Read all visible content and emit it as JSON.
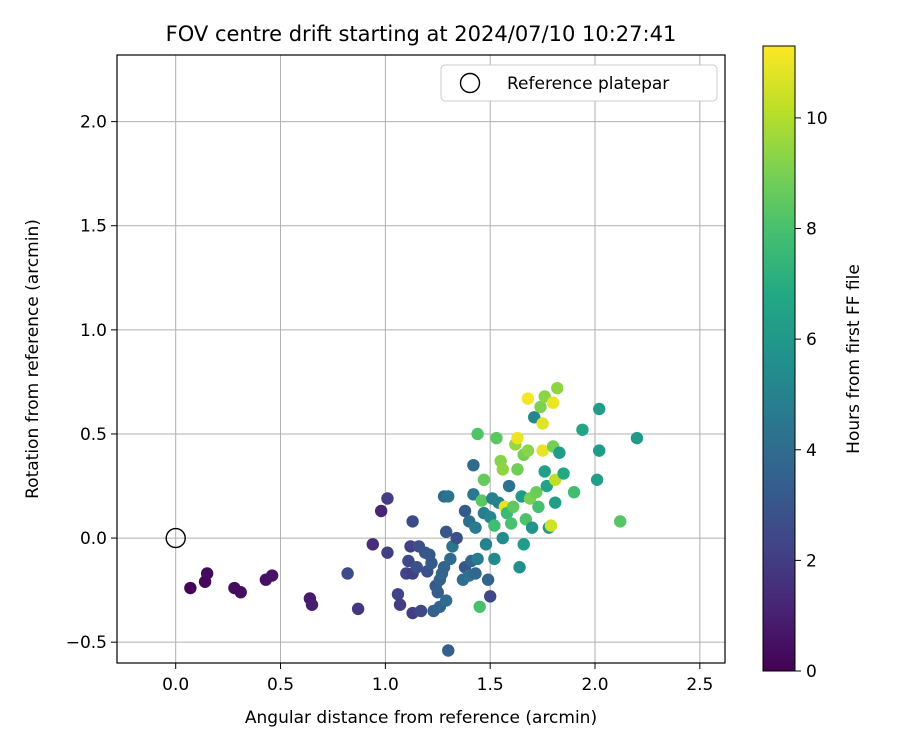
{
  "chart_data": {
    "type": "scatter",
    "title": "FOV centre drift starting at 2024/07/10 10:27:41",
    "xlabel": "Angular distance from reference (arcmin)",
    "ylabel": "Rotation from reference (arcmin)",
    "xlim": [
      -0.28,
      2.62
    ],
    "ylim": [
      -0.6,
      2.32
    ],
    "xticks": [
      0.0,
      0.5,
      1.0,
      1.5,
      2.0,
      2.5
    ],
    "xtick_labels": [
      "0.0",
      "0.5",
      "1.0",
      "1.5",
      "2.0",
      "2.5"
    ],
    "yticks": [
      -0.5,
      0.0,
      0.5,
      1.0,
      1.5,
      2.0
    ],
    "ytick_labels": [
      "−0.5",
      "0.0",
      "0.5",
      "1.0",
      "1.5",
      "2.0"
    ],
    "grid": true,
    "legend": {
      "position": "top-right",
      "entries": [
        "Reference platepar"
      ]
    },
    "reference_point": {
      "x": 0.0,
      "y": 0.0,
      "marker": "open-circle"
    },
    "colorbar": {
      "label": "Hours from first FF file",
      "colormap": "viridis",
      "range": [
        0,
        11.3
      ],
      "ticks": [
        0,
        2,
        4,
        6,
        8,
        10
      ],
      "tick_labels": [
        "0",
        "2",
        "4",
        "6",
        "8",
        "10"
      ]
    },
    "points": [
      {
        "x": 0.07,
        "y": -0.24,
        "c": 0.1
      },
      {
        "x": 0.14,
        "y": -0.21,
        "c": 0.2
      },
      {
        "x": 0.15,
        "y": -0.17,
        "c": 0.3
      },
      {
        "x": 0.28,
        "y": -0.24,
        "c": 0.4
      },
      {
        "x": 0.31,
        "y": -0.26,
        "c": 0.4
      },
      {
        "x": 0.43,
        "y": -0.2,
        "c": 0.5
      },
      {
        "x": 0.46,
        "y": -0.18,
        "c": 0.6
      },
      {
        "x": 0.64,
        "y": -0.29,
        "c": 0.8
      },
      {
        "x": 0.65,
        "y": -0.32,
        "c": 0.9
      },
      {
        "x": 0.82,
        "y": -0.17,
        "c": 2.6
      },
      {
        "x": 0.87,
        "y": -0.34,
        "c": 1.8
      },
      {
        "x": 0.94,
        "y": -0.03,
        "c": 1.4
      },
      {
        "x": 0.98,
        "y": 0.13,
        "c": 1.2
      },
      {
        "x": 1.01,
        "y": 0.19,
        "c": 2.0
      },
      {
        "x": 1.01,
        "y": -0.07,
        "c": 2.1
      },
      {
        "x": 1.06,
        "y": -0.27,
        "c": 2.3
      },
      {
        "x": 1.07,
        "y": -0.32,
        "c": 2.0
      },
      {
        "x": 1.1,
        "y": -0.17,
        "c": 2.4
      },
      {
        "x": 1.11,
        "y": -0.11,
        "c": 2.5
      },
      {
        "x": 1.12,
        "y": -0.04,
        "c": 2.2
      },
      {
        "x": 1.13,
        "y": 0.08,
        "c": 2.6
      },
      {
        "x": 1.13,
        "y": -0.17,
        "c": 2.1
      },
      {
        "x": 1.13,
        "y": -0.36,
        "c": 2.0
      },
      {
        "x": 1.15,
        "y": -0.14,
        "c": 2.8
      },
      {
        "x": 1.16,
        "y": -0.04,
        "c": 2.7
      },
      {
        "x": 1.17,
        "y": -0.35,
        "c": 2.5
      },
      {
        "x": 1.19,
        "y": -0.07,
        "c": 3.0
      },
      {
        "x": 1.2,
        "y": -0.16,
        "c": 2.8
      },
      {
        "x": 1.21,
        "y": -0.08,
        "c": 3.1
      },
      {
        "x": 1.22,
        "y": -0.12,
        "c": 3.2
      },
      {
        "x": 1.23,
        "y": -0.35,
        "c": 3.4
      },
      {
        "x": 1.24,
        "y": -0.23,
        "c": 3.2
      },
      {
        "x": 1.25,
        "y": -0.26,
        "c": 3.3
      },
      {
        "x": 1.26,
        "y": -0.2,
        "c": 3.5
      },
      {
        "x": 1.26,
        "y": -0.33,
        "c": 3.6
      },
      {
        "x": 1.27,
        "y": -0.17,
        "c": 3.7
      },
      {
        "x": 1.28,
        "y": 0.2,
        "c": 3.8
      },
      {
        "x": 1.28,
        "y": -0.14,
        "c": 3.6
      },
      {
        "x": 1.29,
        "y": -0.3,
        "c": 4.0
      },
      {
        "x": 1.29,
        "y": 0.03,
        "c": 3.0
      },
      {
        "x": 1.3,
        "y": 0.2,
        "c": 4.3
      },
      {
        "x": 1.3,
        "y": -0.54,
        "c": 3.4
      },
      {
        "x": 1.31,
        "y": -0.1,
        "c": 3.9
      },
      {
        "x": 1.32,
        "y": -0.04,
        "c": 4.4
      },
      {
        "x": 1.34,
        "y": 0.0,
        "c": 2.7
      },
      {
        "x": 1.37,
        "y": -0.2,
        "c": 4.0
      },
      {
        "x": 1.38,
        "y": 0.13,
        "c": 3.2
      },
      {
        "x": 1.38,
        "y": -0.14,
        "c": 3.0
      },
      {
        "x": 1.4,
        "y": 0.08,
        "c": 4.1
      },
      {
        "x": 1.4,
        "y": -0.18,
        "c": 4.2
      },
      {
        "x": 1.41,
        "y": -0.11,
        "c": 3.7
      },
      {
        "x": 1.42,
        "y": 0.35,
        "c": 3.9
      },
      {
        "x": 1.42,
        "y": 0.21,
        "c": 4.5
      },
      {
        "x": 1.43,
        "y": 0.05,
        "c": 4.6
      },
      {
        "x": 1.43,
        "y": -0.17,
        "c": 3.8
      },
      {
        "x": 1.44,
        "y": 0.5,
        "c": 8.2
      },
      {
        "x": 1.44,
        "y": -0.1,
        "c": 4.7
      },
      {
        "x": 1.45,
        "y": -0.33,
        "c": 8.0
      },
      {
        "x": 1.46,
        "y": 0.18,
        "c": 8.4
      },
      {
        "x": 1.47,
        "y": 0.28,
        "c": 8.6
      },
      {
        "x": 1.47,
        "y": 0.12,
        "c": 4.8
      },
      {
        "x": 1.48,
        "y": -0.03,
        "c": 5.0
      },
      {
        "x": 1.49,
        "y": -0.2,
        "c": 3.6
      },
      {
        "x": 1.5,
        "y": -0.28,
        "c": 2.4
      },
      {
        "x": 1.5,
        "y": 0.1,
        "c": 5.2
      },
      {
        "x": 1.51,
        "y": 0.19,
        "c": 4.9
      },
      {
        "x": 1.52,
        "y": -0.1,
        "c": 5.4
      },
      {
        "x": 1.52,
        "y": 0.06,
        "c": 7.8
      },
      {
        "x": 1.53,
        "y": 0.48,
        "c": 8.4
      },
      {
        "x": 1.54,
        "y": 0.17,
        "c": 5.0
      },
      {
        "x": 1.55,
        "y": 0.37,
        "c": 9.2
      },
      {
        "x": 1.56,
        "y": 0.33,
        "c": 9.4
      },
      {
        "x": 1.56,
        "y": 0.0,
        "c": 5.5
      },
      {
        "x": 1.57,
        "y": 0.15,
        "c": 10.9
      },
      {
        "x": 1.58,
        "y": 0.12,
        "c": 7.6
      },
      {
        "x": 1.59,
        "y": 0.25,
        "c": 4.2
      },
      {
        "x": 1.6,
        "y": 0.07,
        "c": 8.0
      },
      {
        "x": 1.61,
        "y": 0.15,
        "c": 8.5
      },
      {
        "x": 1.62,
        "y": 0.45,
        "c": 9.5
      },
      {
        "x": 1.63,
        "y": 0.48,
        "c": 11.0
      },
      {
        "x": 1.63,
        "y": 0.33,
        "c": 8.8
      },
      {
        "x": 1.64,
        "y": -0.14,
        "c": 5.6
      },
      {
        "x": 1.65,
        "y": 0.2,
        "c": 6.0
      },
      {
        "x": 1.66,
        "y": 0.4,
        "c": 8.9
      },
      {
        "x": 1.66,
        "y": -0.03,
        "c": 6.2
      },
      {
        "x": 1.67,
        "y": 0.09,
        "c": 8.1
      },
      {
        "x": 1.68,
        "y": 0.67,
        "c": 11.1
      },
      {
        "x": 1.68,
        "y": 0.42,
        "c": 9.3
      },
      {
        "x": 1.69,
        "y": 0.19,
        "c": 9.0
      },
      {
        "x": 1.7,
        "y": 0.05,
        "c": 5.8
      },
      {
        "x": 1.71,
        "y": 0.58,
        "c": 5.2
      },
      {
        "x": 1.72,
        "y": 0.22,
        "c": 8.7
      },
      {
        "x": 1.73,
        "y": 0.15,
        "c": 7.9
      },
      {
        "x": 1.74,
        "y": 0.63,
        "c": 9.1
      },
      {
        "x": 1.75,
        "y": 0.55,
        "c": 10.8
      },
      {
        "x": 1.75,
        "y": 0.42,
        "c": 10.9
      },
      {
        "x": 1.76,
        "y": 0.68,
        "c": 9.3
      },
      {
        "x": 1.76,
        "y": 0.32,
        "c": 6.4
      },
      {
        "x": 1.77,
        "y": 0.25,
        "c": 6.5
      },
      {
        "x": 1.78,
        "y": 0.05,
        "c": 6.0
      },
      {
        "x": 1.79,
        "y": 0.06,
        "c": 10.5
      },
      {
        "x": 1.8,
        "y": 0.65,
        "c": 11.0
      },
      {
        "x": 1.8,
        "y": 0.44,
        "c": 8.9
      },
      {
        "x": 1.81,
        "y": 0.28,
        "c": 10.2
      },
      {
        "x": 1.81,
        "y": 0.17,
        "c": 6.3
      },
      {
        "x": 1.82,
        "y": 0.72,
        "c": 9.4
      },
      {
        "x": 1.83,
        "y": 0.41,
        "c": 6.2
      },
      {
        "x": 1.85,
        "y": 0.31,
        "c": 6.8
      },
      {
        "x": 1.9,
        "y": 0.22,
        "c": 7.8
      },
      {
        "x": 1.94,
        "y": 0.52,
        "c": 6.6
      },
      {
        "x": 2.01,
        "y": 0.28,
        "c": 6.4
      },
      {
        "x": 2.02,
        "y": 0.62,
        "c": 6.3
      },
      {
        "x": 2.02,
        "y": 0.42,
        "c": 6.2
      },
      {
        "x": 2.12,
        "y": 0.08,
        "c": 8.3
      },
      {
        "x": 2.2,
        "y": 0.48,
        "c": 6.1
      }
    ]
  }
}
